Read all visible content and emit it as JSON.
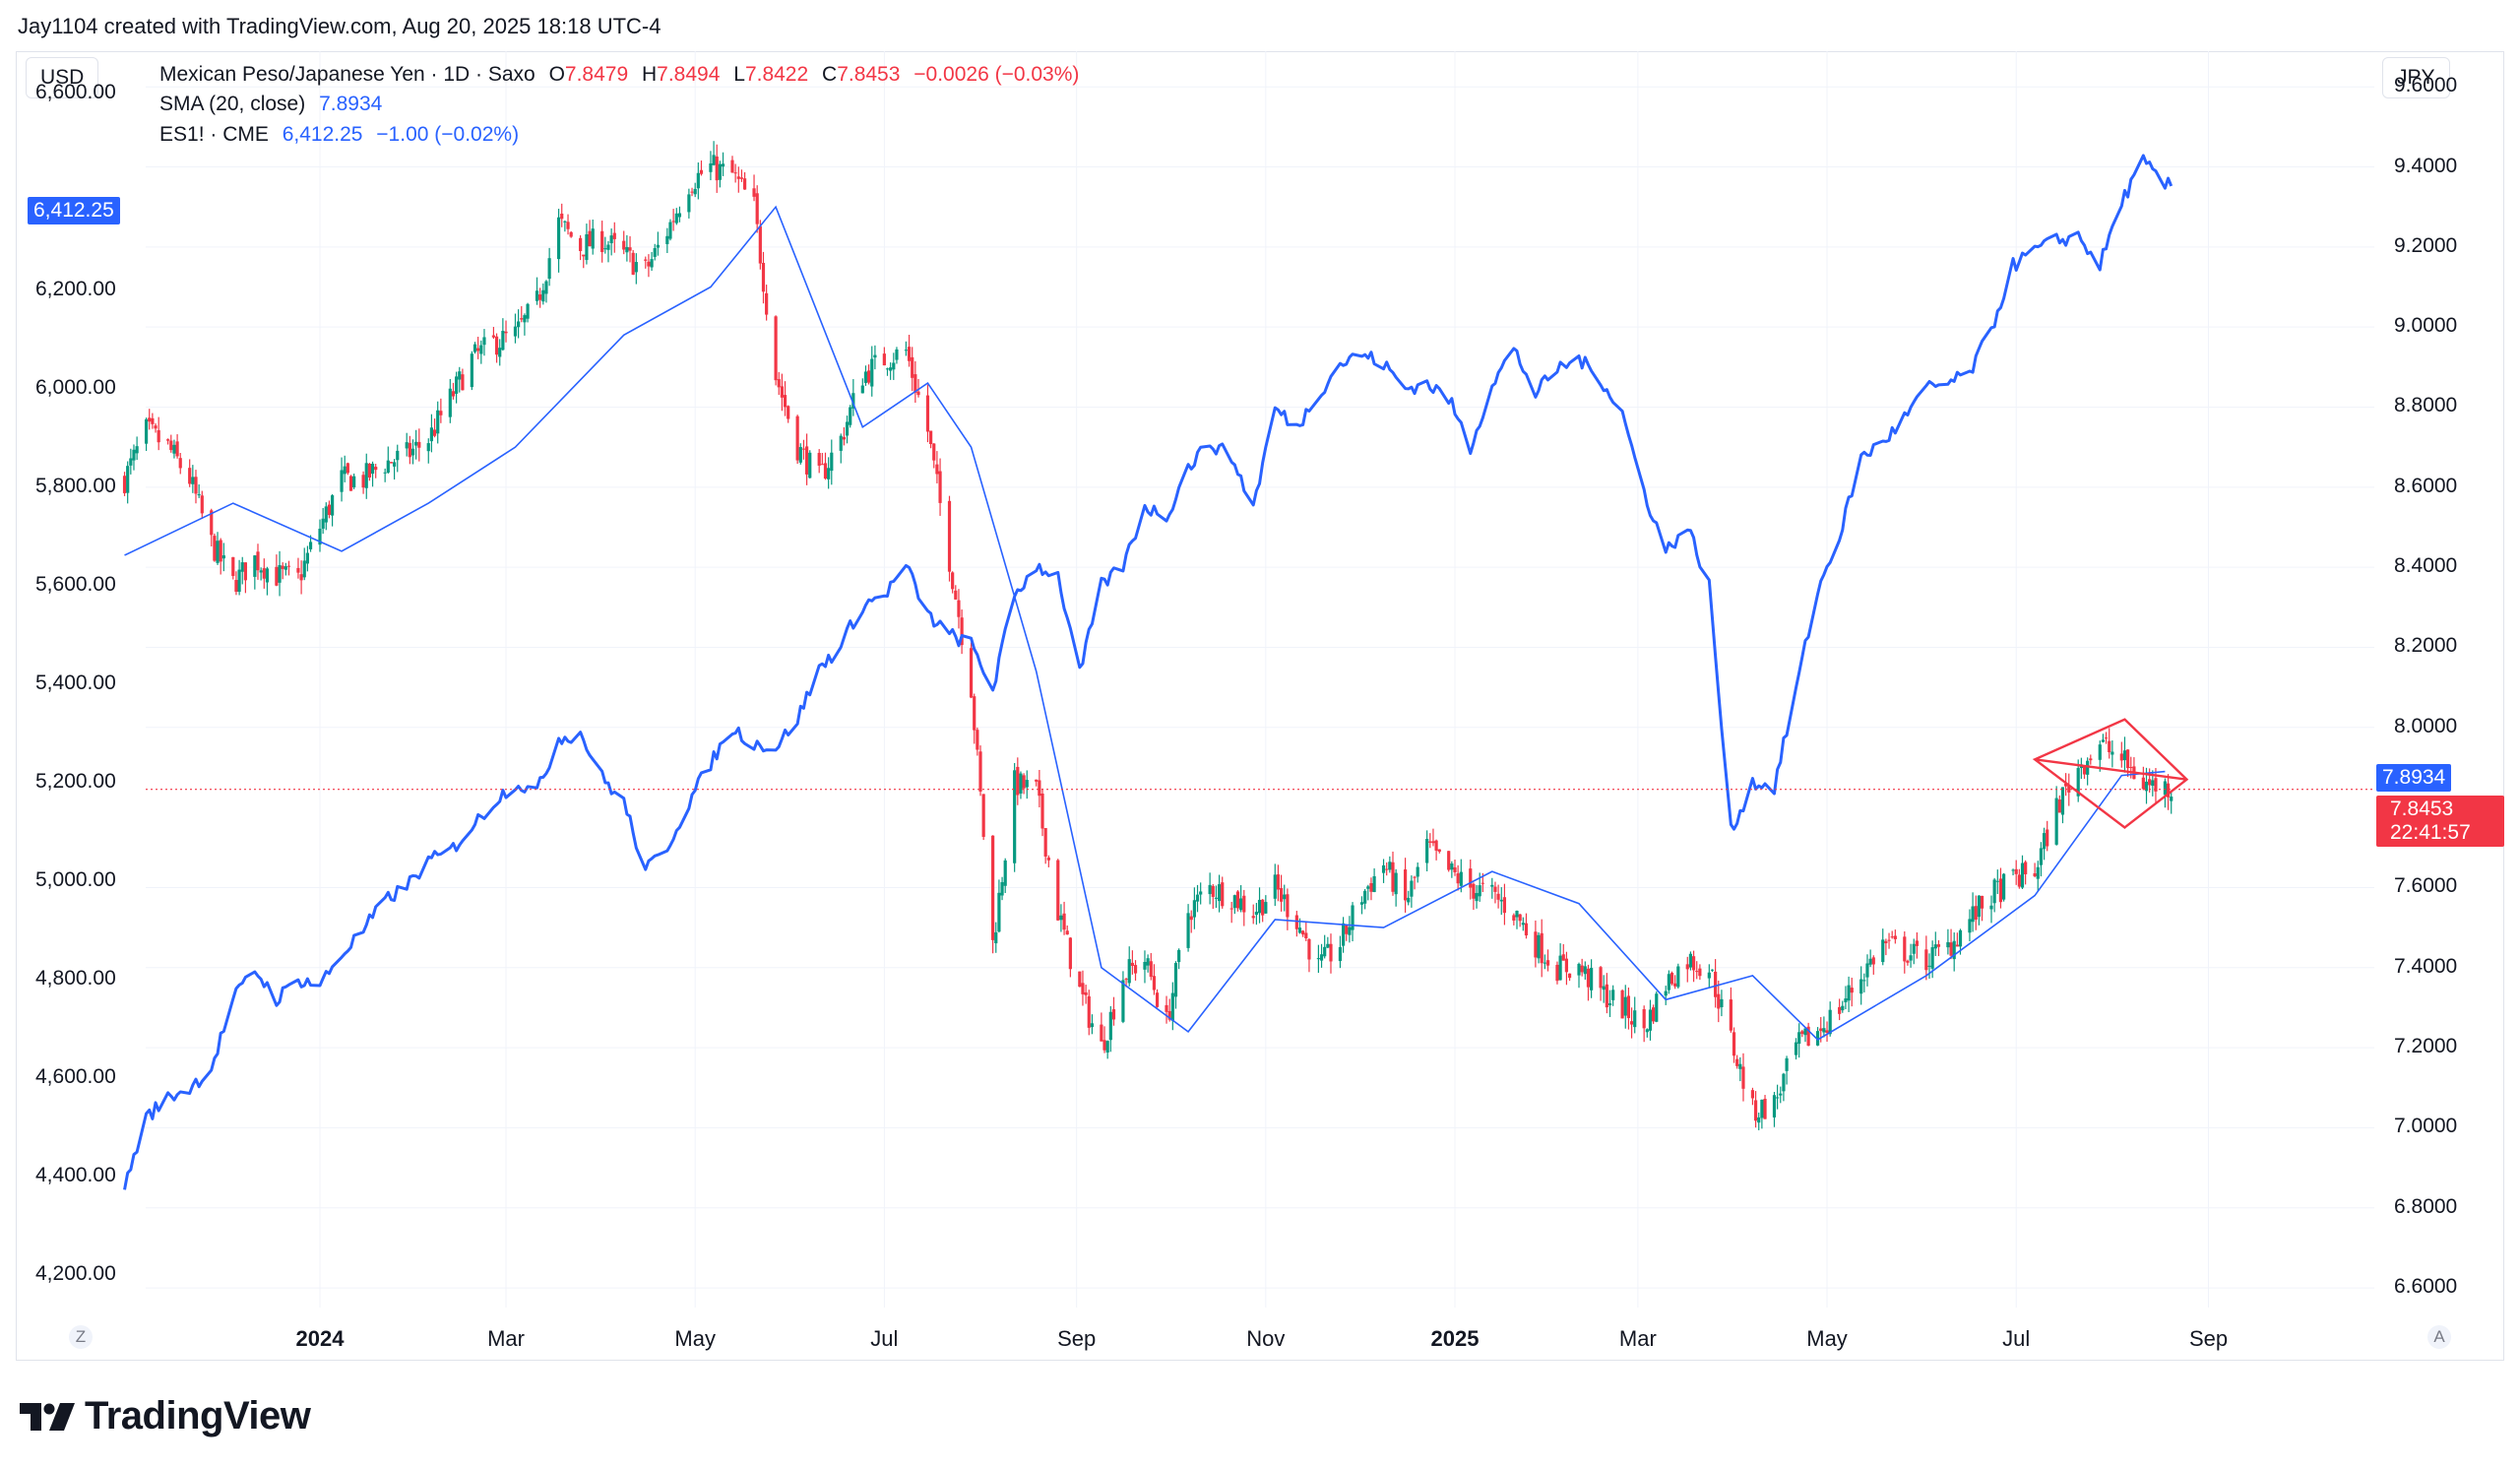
{
  "header": {
    "attribution": "Jay1104 created with TradingView.com, Aug 20, 2025 18:18 UTC-4"
  },
  "left_axis": {
    "currency": "USD",
    "ticks": [
      "6,600.00",
      "6,200.00",
      "6,000.00",
      "5,800.00",
      "5,600.00",
      "5,400.00",
      "5,200.00",
      "5,000.00",
      "4,800.00",
      "4,600.00",
      "4,400.00",
      "4,200.00"
    ]
  },
  "right_axis": {
    "currency": "JPY",
    "ticks": [
      "9.6000",
      "9.4000",
      "9.2000",
      "9.0000",
      "8.8000",
      "8.6000",
      "8.4000",
      "8.2000",
      "8.0000",
      "7.6000",
      "7.4000",
      "7.2000",
      "7.0000",
      "6.8000",
      "6.6000"
    ]
  },
  "legend": {
    "main": {
      "symbol": "Mexican Peso/Japanese Yen · 1D · Saxo",
      "o_label": "O",
      "o": "7.8479",
      "h_label": "H",
      "h": "7.8494",
      "l_label": "L",
      "l": "7.8422",
      "c_label": "C",
      "c": "7.8453",
      "change": "−0.0026 (−0.03%)"
    },
    "sma": {
      "label": "SMA (20, close)",
      "value": "7.8934"
    },
    "es": {
      "label": "ES1! · CME",
      "value": "6,412.25",
      "change": "−1.00 (−0.02%)"
    }
  },
  "price_tags": {
    "es_last": "6,412.25",
    "sma_last": "7.8934",
    "mxn_last": "7.8453",
    "countdown": "22:41:57"
  },
  "x_axis": {
    "labels": [
      "2024",
      "Mar",
      "May",
      "Jul",
      "Sep",
      "Nov",
      "2025",
      "Mar",
      "May",
      "Jul",
      "Sep"
    ]
  },
  "buttons": {
    "log_toggle": "Z",
    "auto_scale": "A"
  },
  "brand": {
    "name": "TradingView"
  },
  "colors": {
    "up": "#089981",
    "down": "#f23645",
    "es_line": "#2962ff",
    "sma_line": "#2962ff",
    "pattern": "#f23645"
  },
  "chart_data": {
    "type": "line",
    "title": "Mexican Peso/Japanese Yen · 1D · Saxo",
    "series": [
      {
        "name": "MXNJPY weekly close (approx., JPY axis)",
        "axis": "right",
        "dates": [
          "2023-10-30",
          "2023-11-06",
          "2023-11-13",
          "2023-11-20",
          "2023-11-27",
          "2023-12-04",
          "2023-12-11",
          "2023-12-18",
          "2023-12-25",
          "2024-01-01",
          "2024-01-08",
          "2024-01-15",
          "2024-01-22",
          "2024-01-29",
          "2024-02-05",
          "2024-02-12",
          "2024-02-19",
          "2024-02-26",
          "2024-03-04",
          "2024-03-11",
          "2024-03-18",
          "2024-03-25",
          "2024-04-01",
          "2024-04-08",
          "2024-04-15",
          "2024-04-22",
          "2024-04-29",
          "2024-05-06",
          "2024-05-13",
          "2024-05-20",
          "2024-05-27",
          "2024-06-03",
          "2024-06-10",
          "2024-06-17",
          "2024-06-24",
          "2024-07-01",
          "2024-07-08",
          "2024-07-15",
          "2024-07-22",
          "2024-07-29",
          "2024-08-05",
          "2024-08-12",
          "2024-08-19",
          "2024-08-26",
          "2024-09-02",
          "2024-09-09",
          "2024-09-16",
          "2024-09-23",
          "2024-09-30",
          "2024-10-07",
          "2024-10-14",
          "2024-10-21",
          "2024-10-28",
          "2024-11-04",
          "2024-11-11",
          "2024-11-18",
          "2024-11-25",
          "2024-12-02",
          "2024-12-09",
          "2024-12-16",
          "2024-12-23",
          "2024-12-30",
          "2025-01-06",
          "2025-01-13",
          "2025-01-20",
          "2025-01-27",
          "2025-02-03",
          "2025-02-10",
          "2025-02-17",
          "2025-02-24",
          "2025-03-03",
          "2025-03-10",
          "2025-03-17",
          "2025-03-24",
          "2025-03-31",
          "2025-04-07",
          "2025-04-14",
          "2025-04-21",
          "2025-04-28",
          "2025-05-05",
          "2025-05-12",
          "2025-05-19",
          "2025-05-26",
          "2025-06-02",
          "2025-06-09",
          "2025-06-16",
          "2025-06-23",
          "2025-06-30",
          "2025-07-07",
          "2025-07-14",
          "2025-07-21",
          "2025-07-28",
          "2025-08-04",
          "2025-08-11",
          "2025-08-18"
        ],
        "values": [
          8.62,
          8.74,
          8.7,
          8.62,
          8.46,
          8.36,
          8.42,
          8.38,
          8.37,
          8.5,
          8.62,
          8.62,
          8.66,
          8.68,
          8.72,
          8.82,
          8.92,
          8.96,
          8.98,
          9.06,
          9.26,
          9.2,
          9.22,
          9.18,
          9.14,
          9.24,
          9.36,
          9.4,
          9.38,
          9.3,
          8.88,
          8.7,
          8.62,
          8.72,
          8.88,
          8.92,
          8.94,
          8.74,
          8.42,
          8.1,
          7.46,
          7.86,
          7.84,
          7.54,
          7.34,
          7.2,
          7.38,
          7.42,
          7.26,
          7.54,
          7.6,
          7.58,
          7.54,
          7.6,
          7.52,
          7.4,
          7.46,
          7.58,
          7.66,
          7.56,
          7.7,
          7.64,
          7.6,
          7.58,
          7.54,
          7.46,
          7.4,
          7.4,
          7.34,
          7.3,
          7.25,
          7.36,
          7.42,
          7.4,
          7.22,
          7.04,
          7.06,
          7.2,
          7.24,
          7.3,
          7.38,
          7.46,
          7.44,
          7.42,
          7.45,
          7.52,
          7.58,
          7.62,
          7.64,
          7.8,
          7.9,
          7.96,
          7.92,
          7.86,
          7.85
        ]
      },
      {
        "name": "SMA (20, close)",
        "axis": "right",
        "dates": [
          "2023-10-30",
          "2023-12-04",
          "2024-01-08",
          "2024-02-05",
          "2024-03-04",
          "2024-04-08",
          "2024-05-06",
          "2024-05-27",
          "2024-06-24",
          "2024-07-15",
          "2024-07-29",
          "2024-08-19",
          "2024-09-09",
          "2024-10-07",
          "2024-11-04",
          "2024-12-09",
          "2025-01-13",
          "2025-02-10",
          "2025-03-10",
          "2025-04-07",
          "2025-04-28",
          "2025-06-02",
          "2025-07-07",
          "2025-08-04",
          "2025-08-18"
        ],
        "values": [
          8.43,
          8.56,
          8.44,
          8.56,
          8.7,
          8.98,
          9.1,
          9.3,
          8.75,
          8.86,
          8.7,
          8.14,
          7.4,
          7.24,
          7.52,
          7.5,
          7.64,
          7.56,
          7.32,
          7.38,
          7.22,
          7.38,
          7.58,
          7.88,
          7.89
        ]
      },
      {
        "name": "ES1! · CME",
        "axis": "left",
        "dates": [
          "2023-10-30",
          "2023-11-06",
          "2023-11-13",
          "2023-11-20",
          "2023-11-27",
          "2023-12-04",
          "2023-12-11",
          "2023-12-18",
          "2023-12-25",
          "2024-01-01",
          "2024-01-08",
          "2024-01-15",
          "2024-01-22",
          "2024-01-29",
          "2024-02-05",
          "2024-02-12",
          "2024-02-19",
          "2024-02-26",
          "2024-03-04",
          "2024-03-11",
          "2024-03-18",
          "2024-03-25",
          "2024-04-01",
          "2024-04-08",
          "2024-04-15",
          "2024-04-22",
          "2024-04-29",
          "2024-05-06",
          "2024-05-13",
          "2024-05-20",
          "2024-05-27",
          "2024-06-03",
          "2024-06-10",
          "2024-06-17",
          "2024-06-24",
          "2024-07-01",
          "2024-07-08",
          "2024-07-15",
          "2024-07-22",
          "2024-07-29",
          "2024-08-05",
          "2024-08-12",
          "2024-08-19",
          "2024-08-26",
          "2024-09-02",
          "2024-09-09",
          "2024-09-16",
          "2024-09-23",
          "2024-09-30",
          "2024-10-07",
          "2024-10-14",
          "2024-10-21",
          "2024-10-28",
          "2024-11-04",
          "2024-11-11",
          "2024-11-18",
          "2024-11-25",
          "2024-12-02",
          "2024-12-09",
          "2024-12-16",
          "2024-12-23",
          "2024-12-30",
          "2025-01-06",
          "2025-01-13",
          "2025-01-20",
          "2025-01-27",
          "2025-02-03",
          "2025-02-10",
          "2025-02-17",
          "2025-02-24",
          "2025-03-03",
          "2025-03-10",
          "2025-03-17",
          "2025-03-24",
          "2025-03-31",
          "2025-04-07",
          "2025-04-14",
          "2025-04-21",
          "2025-04-28",
          "2025-05-05",
          "2025-05-12",
          "2025-05-19",
          "2025-05-26",
          "2025-06-02",
          "2025-06-09",
          "2025-06-16",
          "2025-06-23",
          "2025-06-30",
          "2025-07-07",
          "2025-07-14",
          "2025-07-21",
          "2025-07-28",
          "2025-08-04",
          "2025-08-11",
          "2025-08-18"
        ],
        "values": [
          4380,
          4520,
          4560,
          4580,
          4620,
          4760,
          4820,
          4760,
          4800,
          4790,
          4850,
          4900,
          4960,
          4990,
          5040,
          5060,
          5110,
          5160,
          5200,
          5180,
          5290,
          5300,
          5210,
          5160,
          5020,
          5070,
          5160,
          5240,
          5310,
          5280,
          5270,
          5330,
          5430,
          5480,
          5560,
          5580,
          5640,
          5540,
          5500,
          5480,
          5390,
          5580,
          5640,
          5620,
          5420,
          5600,
          5640,
          5760,
          5740,
          5840,
          5890,
          5860,
          5760,
          5960,
          5920,
          5990,
          6050,
          6070,
          6050,
          6000,
          6010,
          5980,
          5880,
          6010,
          6080,
          5990,
          6040,
          6060,
          6020,
          5950,
          5790,
          5670,
          5720,
          5600,
          5100,
          5200,
          5190,
          5390,
          5590,
          5700,
          5860,
          5890,
          5940,
          6000,
          6010,
          6030,
          6120,
          6250,
          6280,
          6300,
          6310,
          6250,
          6380,
          6460,
          6412.25
        ]
      }
    ],
    "y_left": {
      "label": "USD",
      "range": [
        4134,
        6685
      ]
    },
    "y_right": {
      "label": "JPY",
      "range": [
        6.551,
        9.689
      ]
    },
    "current": {
      "mxnjpy": 7.8453,
      "sma20": 7.8934,
      "es": 6412.25
    },
    "annotations": [
      {
        "type": "diamond pattern",
        "start": "2025-07-07",
        "end": "2025-08-25",
        "upper": 8.02,
        "lower": 7.75,
        "apex": 7.87
      }
    ]
  }
}
